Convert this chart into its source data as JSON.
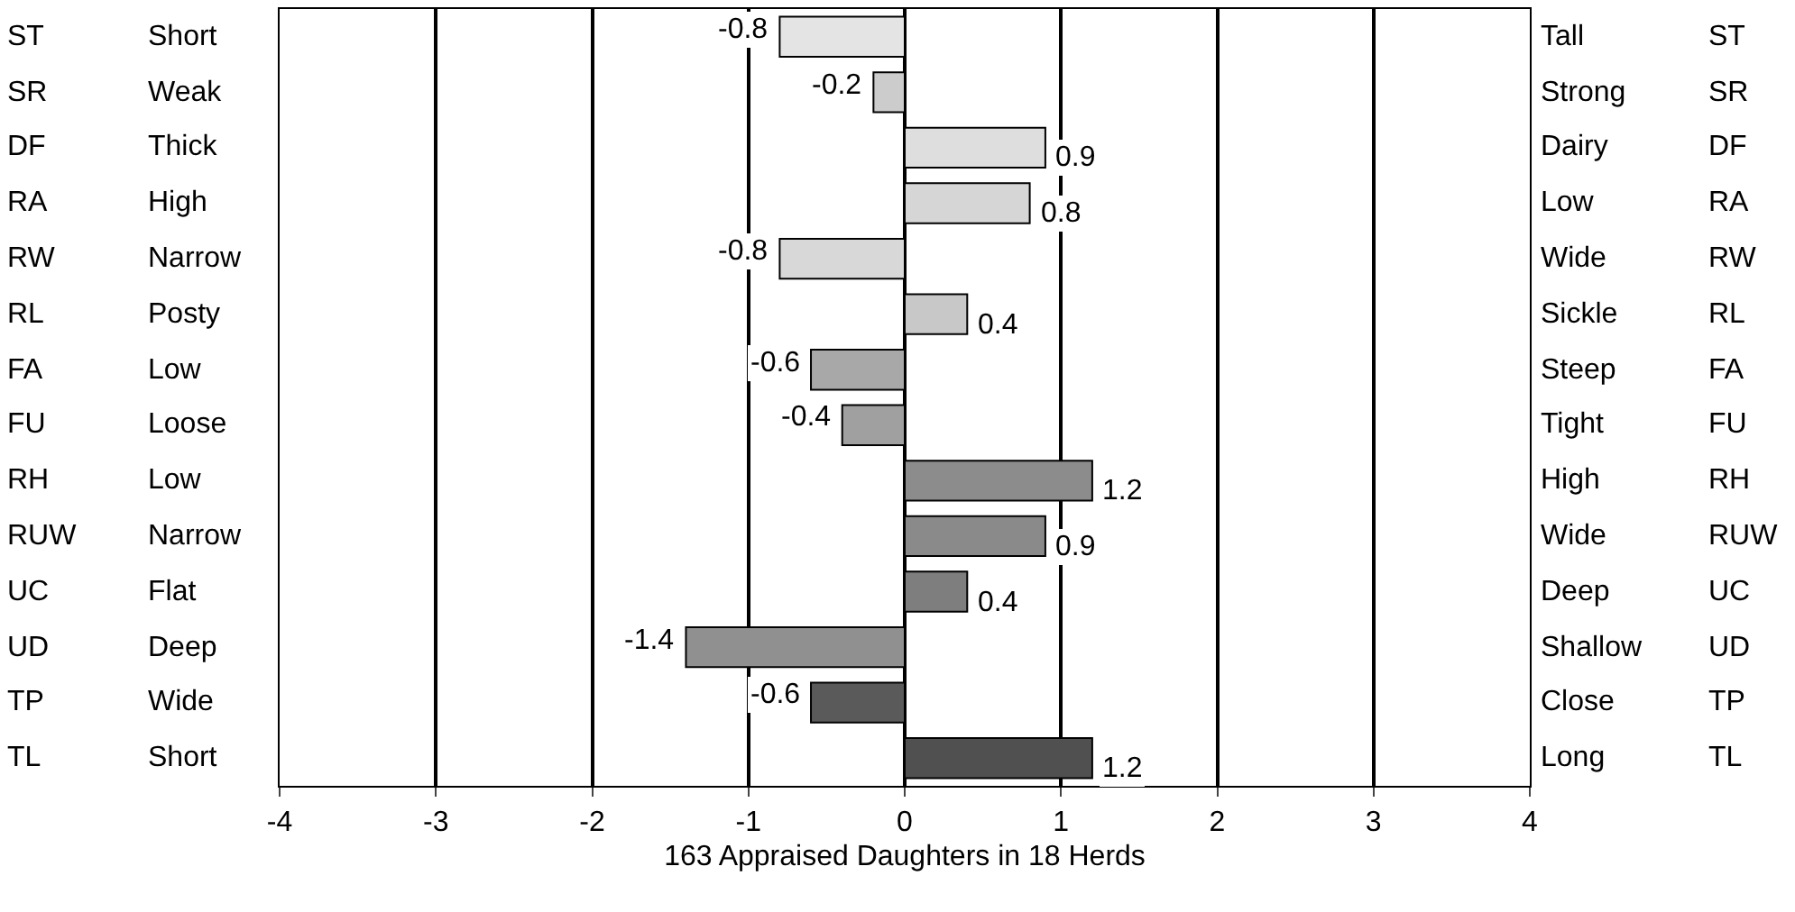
{
  "chart_data": {
    "type": "bar",
    "orientation": "horizontal",
    "xlabel": "163 Appraised Daughters in 18 Herds",
    "categories": [
      "ST",
      "SR",
      "DF",
      "RA",
      "RW",
      "RL",
      "FA",
      "FU",
      "RH",
      "RUW",
      "UC",
      "UD",
      "TP",
      "TL"
    ],
    "y2_categories": [
      "ST",
      "SR",
      "DF",
      "RA",
      "RW",
      "RL",
      "FA",
      "FU",
      "RH",
      "RUW",
      "UC",
      "UD",
      "TP",
      "TL"
    ],
    "annotations": [
      "Short",
      "Weak",
      "Thick",
      "High",
      "Narrow",
      "Posty",
      "Low",
      "Loose",
      "Low",
      "Narrow",
      "Flat",
      "Deep",
      "Wide",
      "Short",
      "Tall",
      "Strong",
      "Dairy",
      "Low",
      "Wide",
      "Sickle",
      "Steep",
      "Tight",
      "High",
      "Wide",
      "Deep",
      "Shallow",
      "Close",
      "Long"
    ],
    "values": [
      -0.8,
      -0.2,
      0.9,
      0.8,
      -0.8,
      0.4,
      -0.6,
      -0.4,
      1.2,
      0.9,
      0.4,
      -1.4,
      -0.6,
      1.2
    ],
    "colors": [
      "#e4e4e4",
      "#cccccc",
      "#dedede",
      "#d6d6d6",
      "#d8d8d8",
      "#c8c8c8",
      "#a8a8a8",
      "#a0a0a0",
      "#8c8c8c",
      "#8a8a8a",
      "#7e7e7e",
      "#909090",
      "#5a5a5a",
      "#505050"
    ],
    "data_labels": true,
    "xlim": [
      -4,
      4
    ],
    "xticks": [
      -4,
      -3,
      -2,
      -1,
      0,
      1,
      2,
      3,
      4
    ],
    "grid": "x",
    "legend": false
  }
}
